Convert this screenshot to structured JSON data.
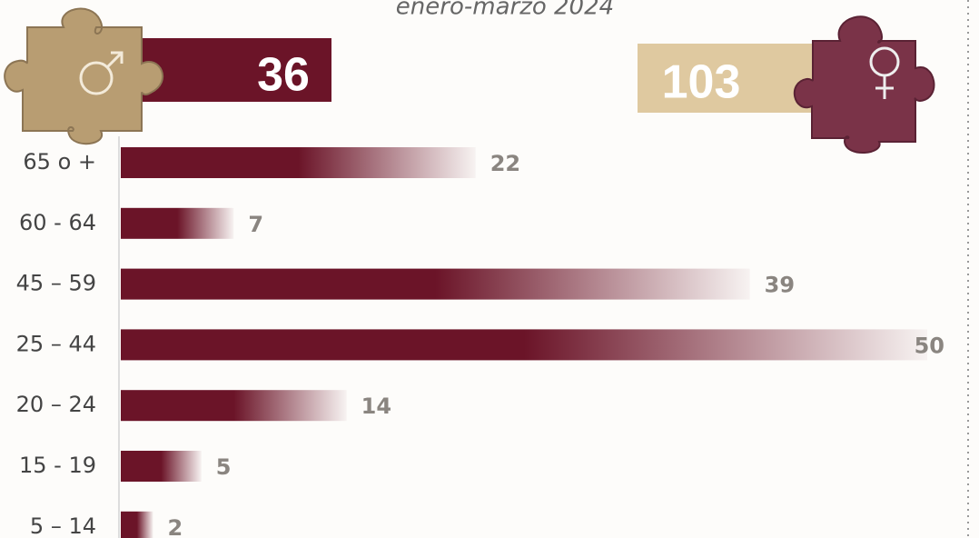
{
  "chart_data": {
    "type": "bar",
    "subtitle": "enero-marzo 2024",
    "totals": {
      "male": 36,
      "female": 103
    },
    "categories": [
      "65 o +",
      "60 - 64",
      "45 – 59",
      "25 – 44",
      "20 – 24",
      "15 - 19",
      "5 – 14"
    ],
    "values": [
      22,
      7,
      39,
      50,
      14,
      5,
      2
    ],
    "color": "#6b1428"
  }
}
